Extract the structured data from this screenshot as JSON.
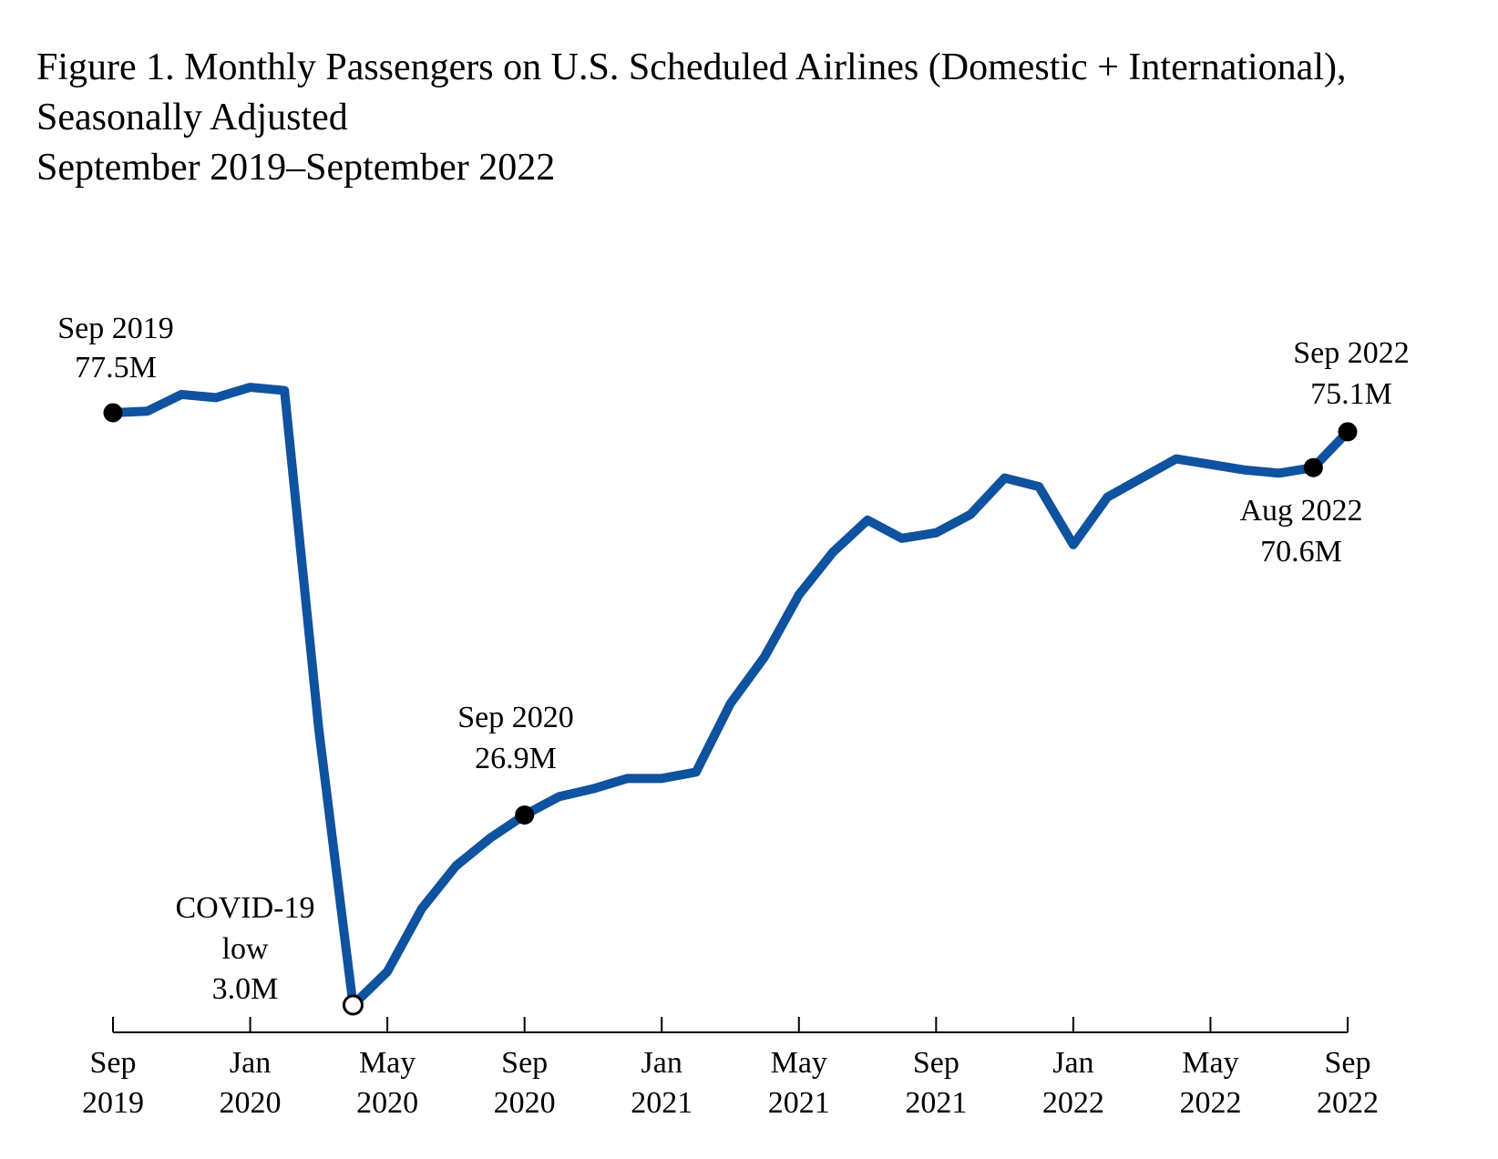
{
  "chart_data": {
    "type": "line",
    "title": "Figure 1. Monthly Passengers on U.S. Scheduled Airlines (Domestic + International),",
    "title_line2": "Seasonally Adjusted",
    "subtitle": "September 2019–September 2022",
    "xlabel": "",
    "ylabel": "",
    "grid": false,
    "unit": "M",
    "line_color": "#0f52a0",
    "x": [
      "2019-09",
      "2019-10",
      "2019-11",
      "2019-12",
      "2020-01",
      "2020-02",
      "2020-03",
      "2020-04",
      "2020-05",
      "2020-06",
      "2020-07",
      "2020-08",
      "2020-09",
      "2020-10",
      "2020-11",
      "2020-12",
      "2021-01",
      "2021-02",
      "2021-03",
      "2021-04",
      "2021-05",
      "2021-06",
      "2021-07",
      "2021-08",
      "2021-09",
      "2021-10",
      "2021-11",
      "2021-12",
      "2022-01",
      "2022-02",
      "2022-03",
      "2022-04",
      "2022-05",
      "2022-06",
      "2022-07",
      "2022-08",
      "2022-09"
    ],
    "series": [
      {
        "values": [
          77.5,
          77.7,
          79.8,
          79.4,
          80.7,
          80.3,
          37.7,
          3.0,
          7.2,
          15.1,
          20.5,
          24.0,
          26.9,
          29.2,
          30.2,
          31.5,
          31.5,
          32.3,
          40.9,
          46.8,
          54.6,
          60.0,
          64.0,
          61.7,
          62.4,
          64.7,
          69.3,
          68.2,
          60.9,
          66.9,
          69.3,
          71.7,
          71.0,
          70.3,
          69.9,
          70.6,
          75.1
        ]
      }
    ],
    "x_ticks": [
      {
        "month": "Sep",
        "year": "2019",
        "index": 0
      },
      {
        "month": "Jan",
        "year": "2020",
        "index": 4
      },
      {
        "month": "May",
        "year": "2020",
        "index": 8
      },
      {
        "month": "Sep",
        "year": "2020",
        "index": 12
      },
      {
        "month": "Jan",
        "year": "2021",
        "index": 16
      },
      {
        "month": "May",
        "year": "2021",
        "index": 20
      },
      {
        "month": "Sep",
        "year": "2021",
        "index": 24
      },
      {
        "month": "Jan",
        "year": "2022",
        "index": 28
      },
      {
        "month": "May",
        "year": "2022",
        "index": 32
      },
      {
        "month": "Sep",
        "year": "2022",
        "index": 36
      }
    ],
    "annotations": [
      {
        "index": 0,
        "lines": [
          "Sep 2019",
          "77.5M"
        ],
        "marker": "filled"
      },
      {
        "index": 7,
        "lines": [
          "COVID-19",
          "low",
          "3.0M"
        ],
        "marker": "open"
      },
      {
        "index": 12,
        "lines": [
          "Sep 2020",
          "26.9M"
        ],
        "marker": "filled"
      },
      {
        "index": 35,
        "lines": [
          "Aug 2022",
          "70.6M"
        ],
        "marker": "filled"
      },
      {
        "index": 36,
        "lines": [
          "Sep 2022",
          "75.1M"
        ],
        "marker": "filled"
      }
    ]
  }
}
